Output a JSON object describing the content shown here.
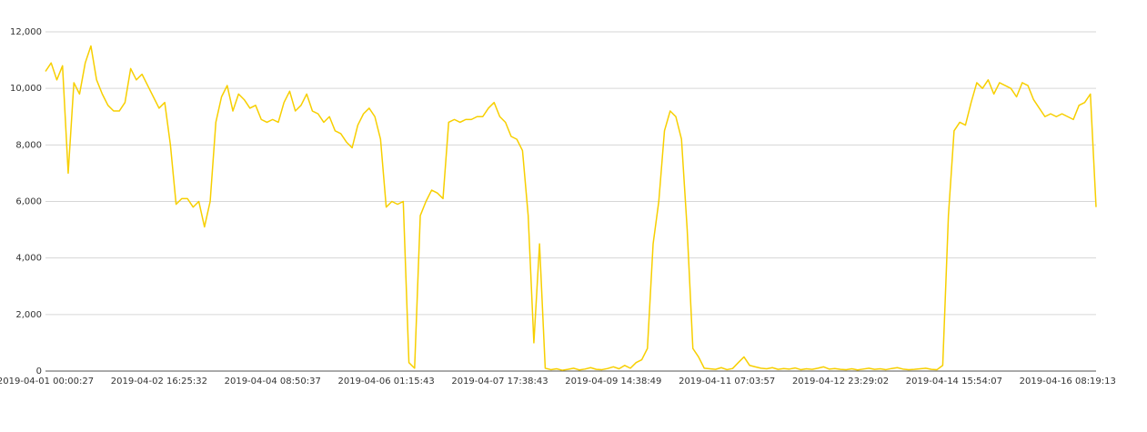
{
  "chart_data": {
    "type": "line",
    "categories": [
      "2019-04-01 00:00:27",
      null,
      null,
      null,
      null,
      null,
      null,
      null,
      null,
      null,
      null,
      null,
      null,
      null,
      null,
      null,
      null,
      null,
      null,
      null,
      "2019-04-02 16:25:32",
      null,
      null,
      null,
      null,
      null,
      null,
      null,
      null,
      null,
      null,
      null,
      null,
      null,
      null,
      null,
      null,
      null,
      null,
      null,
      "2019-04-04 08:50:37",
      null,
      null,
      null,
      null,
      null,
      null,
      null,
      null,
      null,
      null,
      null,
      null,
      null,
      null,
      null,
      null,
      null,
      null,
      null,
      "2019-04-06 01:15:43",
      null,
      null,
      null,
      null,
      null,
      null,
      null,
      null,
      null,
      null,
      null,
      null,
      null,
      null,
      null,
      null,
      null,
      null,
      null,
      "2019-04-07 17:38:43",
      null,
      null,
      null,
      null,
      null,
      null,
      null,
      null,
      null,
      null,
      null,
      null,
      null,
      null,
      null,
      null,
      null,
      null,
      null,
      "2019-04-09 14:38:49",
      null,
      null,
      null,
      null,
      null,
      null,
      null,
      null,
      null,
      null,
      null,
      null,
      null,
      null,
      null,
      null,
      null,
      null,
      null,
      "2019-04-11 07:03:57",
      null,
      null,
      null,
      null,
      null,
      null,
      null,
      null,
      null,
      null,
      null,
      null,
      null,
      null,
      null,
      null,
      null,
      null,
      null,
      "2019-04-12 23:29:02",
      null,
      null,
      null,
      null,
      null,
      null,
      null,
      null,
      null,
      null,
      null,
      null,
      null,
      null,
      null,
      null,
      null,
      null,
      null,
      "2019-04-14 15:54:07",
      null,
      null,
      null,
      null,
      null,
      null,
      null,
      null,
      null,
      null,
      null,
      null,
      null,
      null,
      null,
      null,
      null,
      null,
      null,
      "2019-04-16 08:19:13",
      null,
      null,
      null,
      null,
      null
    ],
    "series": [
      {
        "color": "#f7cf00",
        "values": [
          10600,
          10900,
          10300,
          10800,
          7000,
          10200,
          9800,
          10900,
          11500,
          10300,
          9800,
          9400,
          9200,
          9200,
          9500,
          10700,
          10300,
          10500,
          10100,
          9700,
          9300,
          9500,
          8000,
          5900,
          6100,
          6100,
          5800,
          6000,
          5100,
          6000,
          8800,
          9700,
          10100,
          9200,
          9800,
          9600,
          9300,
          9400,
          8900,
          8800,
          8900,
          8800,
          9500,
          9900,
          9200,
          9400,
          9800,
          9200,
          9100,
          8800,
          9000,
          8500,
          8400,
          8100,
          7900,
          8700,
          9100,
          9300,
          9000,
          8200,
          5800,
          6000,
          5900,
          6000,
          300,
          100,
          5500,
          6000,
          6400,
          6300,
          6100,
          8800,
          8900,
          8800,
          8900,
          8900,
          9000,
          9000,
          9300,
          9500,
          9000,
          8800,
          8300,
          8200,
          7800,
          5500,
          1000,
          4500,
          100,
          50,
          80,
          30,
          60,
          100,
          40,
          70,
          120,
          60,
          50,
          90,
          150,
          80,
          200,
          100,
          300,
          400,
          800,
          4500,
          6000,
          8500,
          9200,
          9000,
          8200,
          5000,
          800,
          500,
          100,
          80,
          60,
          120,
          50,
          90,
          300,
          500,
          200,
          150,
          100,
          80,
          120,
          60,
          90,
          70,
          110,
          50,
          80,
          60,
          100,
          150,
          70,
          90,
          60,
          50,
          80,
          40,
          70,
          100,
          60,
          80,
          50,
          90,
          120,
          70,
          50,
          60,
          80,
          100,
          60,
          50,
          200,
          5500,
          8500,
          8800,
          8700,
          9500,
          10200,
          10000,
          10300,
          9800,
          10200,
          10100,
          10000,
          9700,
          10200,
          10100,
          9600,
          9300,
          9000,
          9100,
          9000,
          9100,
          9000,
          8900,
          9400,
          9500,
          9800,
          5800
        ]
      }
    ],
    "ylim": [
      0,
      12000
    ],
    "yticks": [
      0,
      {
        "value": 2000,
        "label": "2,000"
      },
      {
        "value": 4000,
        "label": "4,000"
      },
      {
        "value": 6000,
        "label": "6,000"
      },
      {
        "value": 8000,
        "label": "8,000"
      },
      {
        "value": 10000,
        "label": "10,000"
      },
      {
        "value": 12000,
        "label": "12,000"
      }
    ],
    "grid": true
  }
}
